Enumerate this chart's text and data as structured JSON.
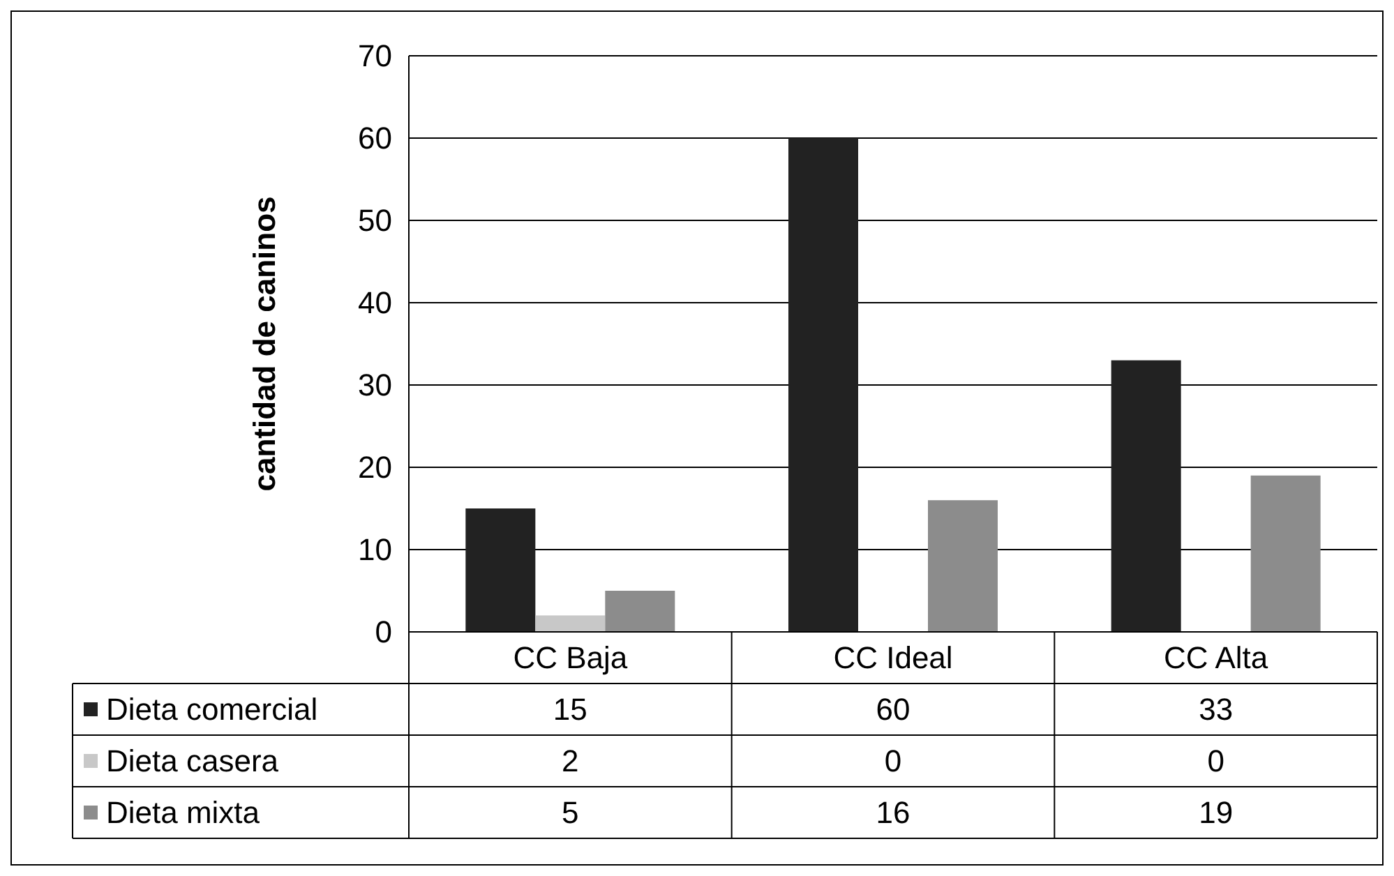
{
  "chart_data": {
    "type": "bar",
    "ylabel": "cantidad de caninos",
    "categories": [
      "CC Baja",
      "CC Ideal",
      "CC Alta"
    ],
    "series": [
      {
        "name": "Dieta comercial",
        "color": "#222222",
        "values": [
          15,
          60,
          33
        ]
      },
      {
        "name": "Dieta casera",
        "color": "#c8c8c8",
        "values": [
          2,
          0,
          0
        ]
      },
      {
        "name": "Dieta mixta",
        "color": "#8c8c8c",
        "values": [
          5,
          16,
          19
        ]
      }
    ],
    "ylim": [
      0,
      70
    ],
    "yticks": [
      0,
      10,
      20,
      30,
      40,
      50,
      60,
      70
    ],
    "grid": "y",
    "data_labels": true,
    "legend": "bottom"
  }
}
